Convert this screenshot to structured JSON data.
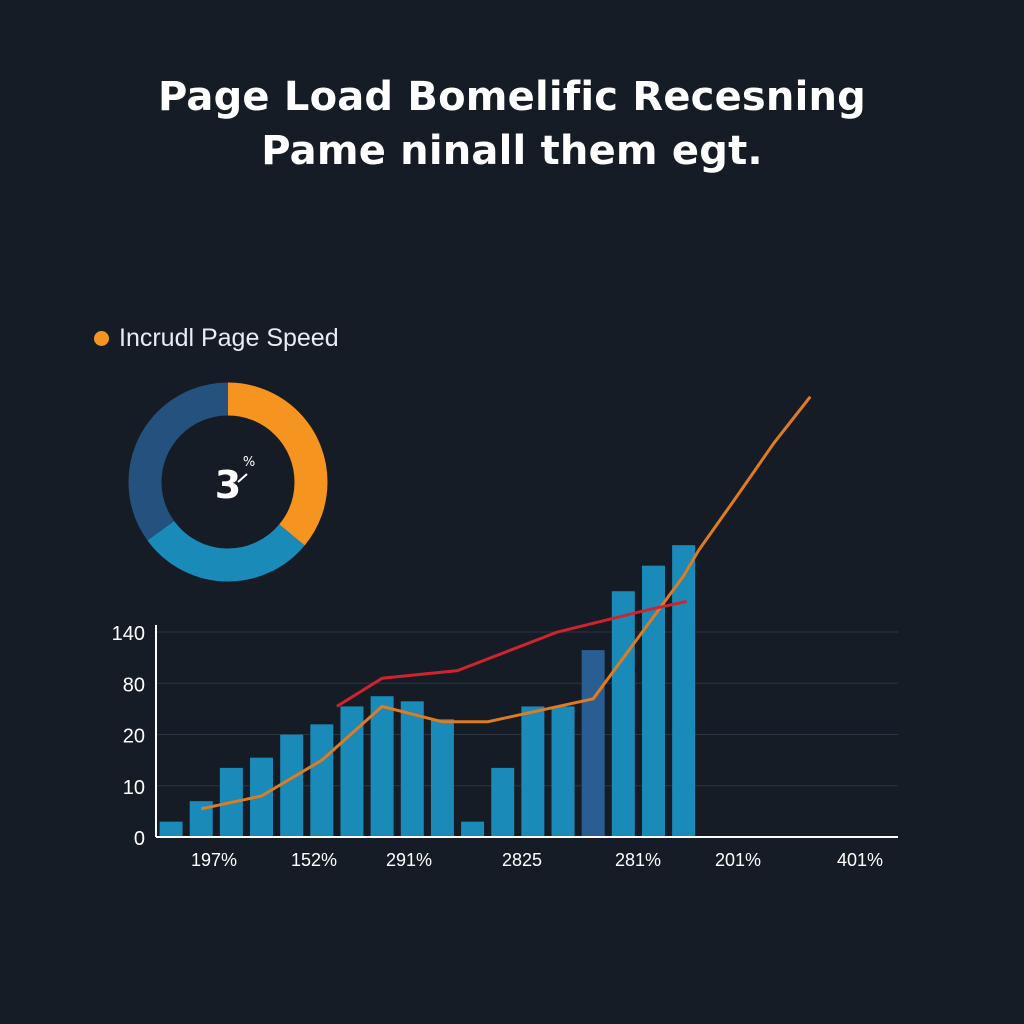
{
  "title_line1": "Page Load Bomelific Recesning",
  "title_line2": "Pame ninall them egt.",
  "colors": {
    "background": "#161c26",
    "bar": "#1a8ab8",
    "bar_highlight": "#2a5d92",
    "line_orange": "#e07b20",
    "line_red": "#d0232f",
    "donut_orange": "#f59520",
    "donut_blue": "#1a8ab8",
    "donut_navy": "#25517e",
    "grid": "#2c3441",
    "axis": "#ffffff"
  },
  "legend": {
    "label": "Incrudl Page Speed",
    "color": "#f59520"
  },
  "donut": {
    "value_text": "3",
    "unit_text": "%",
    "segments": [
      {
        "value": 0.36,
        "color": "#f59520"
      },
      {
        "value": 0.29,
        "color": "#1a8ab8"
      },
      {
        "value": 0.35,
        "color": "#25517e"
      }
    ]
  },
  "chart_data": {
    "type": "bar",
    "ytick_labels": [
      "0",
      "10",
      "20",
      "80",
      "140"
    ],
    "xtick_labels": [
      "197%",
      "152%",
      "291%",
      "2825",
      "281%",
      "201%",
      "401%"
    ],
    "bars": [
      {
        "value": 0.3,
        "highlight": false
      },
      {
        "value": 0.7,
        "highlight": false
      },
      {
        "value": 1.35,
        "highlight": false
      },
      {
        "value": 1.55,
        "highlight": false
      },
      {
        "value": 2.0,
        "highlight": false
      },
      {
        "value": 2.2,
        "highlight": false
      },
      {
        "value": 2.55,
        "highlight": false
      },
      {
        "value": 2.75,
        "highlight": false
      },
      {
        "value": 2.65,
        "highlight": false
      },
      {
        "value": 2.3,
        "highlight": false
      },
      {
        "value": 0.3,
        "highlight": false
      },
      {
        "value": 1.35,
        "highlight": false
      },
      {
        "value": 2.55,
        "highlight": false
      },
      {
        "value": 2.55,
        "highlight": false
      },
      {
        "value": 3.65,
        "highlight": true
      },
      {
        "value": 4.8,
        "highlight": false
      },
      {
        "value": 5.3,
        "highlight": false
      },
      {
        "value": 5.7,
        "highlight": false
      }
    ],
    "series": [
      {
        "color": "#e07b20",
        "points": [
          [
            1.5,
            0.55
          ],
          [
            3.5,
            0.8
          ],
          [
            5.5,
            1.5
          ],
          [
            7.5,
            2.55
          ],
          [
            9.5,
            2.25
          ],
          [
            11,
            2.25
          ],
          [
            14.5,
            2.7
          ],
          [
            17.5,
            5.1
          ],
          [
            18,
            5.6
          ],
          [
            19.2,
            6.6
          ],
          [
            20.5,
            7.7
          ],
          [
            21.7,
            8.6
          ]
        ]
      },
      {
        "color": "#d0232f",
        "points": [
          [
            6,
            2.55
          ],
          [
            7.5,
            3.1
          ],
          [
            10,
            3.25
          ],
          [
            13.3,
            4.0
          ],
          [
            16.4,
            4.45
          ],
          [
            17.6,
            4.6
          ]
        ]
      }
    ]
  }
}
